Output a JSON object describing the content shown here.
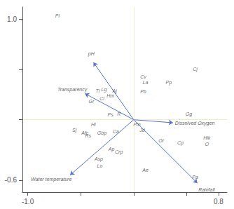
{
  "chart_data": {
    "type": "biplot",
    "xlim": [
      -1.05,
      0.88
    ],
    "ylim": [
      -0.72,
      1.12
    ],
    "xticks": [
      {
        "value": -1.0,
        "label": "-1.0"
      },
      {
        "value": -0.5,
        "label": null
      },
      {
        "value": 0.0,
        "label": null
      },
      {
        "value": 0.5,
        "label": null
      },
      0.8
    ],
    "yticks": [
      -0.6,
      {
        "value": 0.0,
        "label": null
      },
      {
        "value": 0.5,
        "label": null
      },
      {
        "value": 1.0,
        "label": "1.0"
      }
    ],
    "grid": false,
    "points": [
      {
        "label": "Pl",
        "x": -0.72,
        "y": 1.03
      },
      {
        "label": "Cv",
        "x": 0.09,
        "y": 0.43
      },
      {
        "label": "La",
        "x": 0.11,
        "y": 0.37
      },
      {
        "label": "Pp",
        "x": 0.33,
        "y": 0.37
      },
      {
        "label": "Pb",
        "x": 0.09,
        "y": 0.28
      },
      {
        "label": "Cj",
        "x": 0.58,
        "y": 0.5
      },
      {
        "label": "Gg",
        "x": 0.52,
        "y": 0.06
      },
      {
        "label": "Lg",
        "x": -0.28,
        "y": 0.3
      },
      {
        "label": "Aj",
        "x": -0.18,
        "y": 0.29
      },
      {
        "label": "Hm",
        "x": -0.22,
        "y": 0.24
      },
      {
        "label": "Cl",
        "x": -0.3,
        "y": 0.21
      },
      {
        "label": "Gr",
        "x": -0.4,
        "y": 0.18
      },
      {
        "label": "Ps",
        "x": -0.22,
        "y": 0.05
      },
      {
        "label": "R",
        "x": -0.14,
        "y": 0.06
      },
      {
        "label": "Hl",
        "x": -0.38,
        "y": -0.05
      },
      {
        "label": "Sj",
        "x": -0.56,
        "y": -0.1
      },
      {
        "label": "Afc",
        "x": -0.46,
        "y": -0.13
      },
      {
        "label": "Rs",
        "x": -0.43,
        "y": -0.16
      },
      {
        "label": "Gbp",
        "x": -0.3,
        "y": -0.13
      },
      {
        "label": "Ca",
        "x": -0.17,
        "y": -0.12
      },
      {
        "label": "Ptn",
        "x": 0.03,
        "y": -0.05
      },
      {
        "label": "Jd",
        "x": 0.08,
        "y": -0.1
      },
      {
        "label": "Or",
        "x": 0.26,
        "y": -0.21
      },
      {
        "label": "Cp",
        "x": 0.44,
        "y": -0.23
      },
      {
        "label": "Hik",
        "x": 0.69,
        "y": -0.18
      },
      {
        "label": "O",
        "x": 0.69,
        "y": -0.24
      },
      {
        "label": "Ap",
        "x": -0.21,
        "y": -0.29
      },
      {
        "label": "Crp",
        "x": -0.14,
        "y": -0.32
      },
      {
        "label": "Asp",
        "x": -0.33,
        "y": -0.39
      },
      {
        "label": "Lo",
        "x": -0.32,
        "y": -0.46
      },
      {
        "label": "Ae",
        "x": 0.11,
        "y": -0.5
      },
      {
        "label": "Pa",
        "x": 0.58,
        "y": -0.57
      },
      {
        "label": "Ti",
        "x": -0.34,
        "y": 0.29
      }
    ],
    "arrows": [
      {
        "label": "pH",
        "x": -0.38,
        "y": 0.57,
        "label_x": -0.43,
        "label_y": 0.63
      },
      {
        "label": "Transparency",
        "x": -0.46,
        "y": 0.26,
        "label_x": -0.72,
        "label_y": 0.28
      },
      {
        "label": "Dissolved Oxygen",
        "x": 0.37,
        "y": -0.03,
        "label_x": 0.39,
        "label_y": -0.03
      },
      {
        "label": "Water temperature",
        "x": -0.6,
        "y": -0.55,
        "label_x": -0.97,
        "label_y": -0.57
      },
      {
        "label": "Rainfall",
        "x": 0.6,
        "y": -0.63,
        "label_x": 0.61,
        "label_y": -0.67
      }
    ]
  }
}
